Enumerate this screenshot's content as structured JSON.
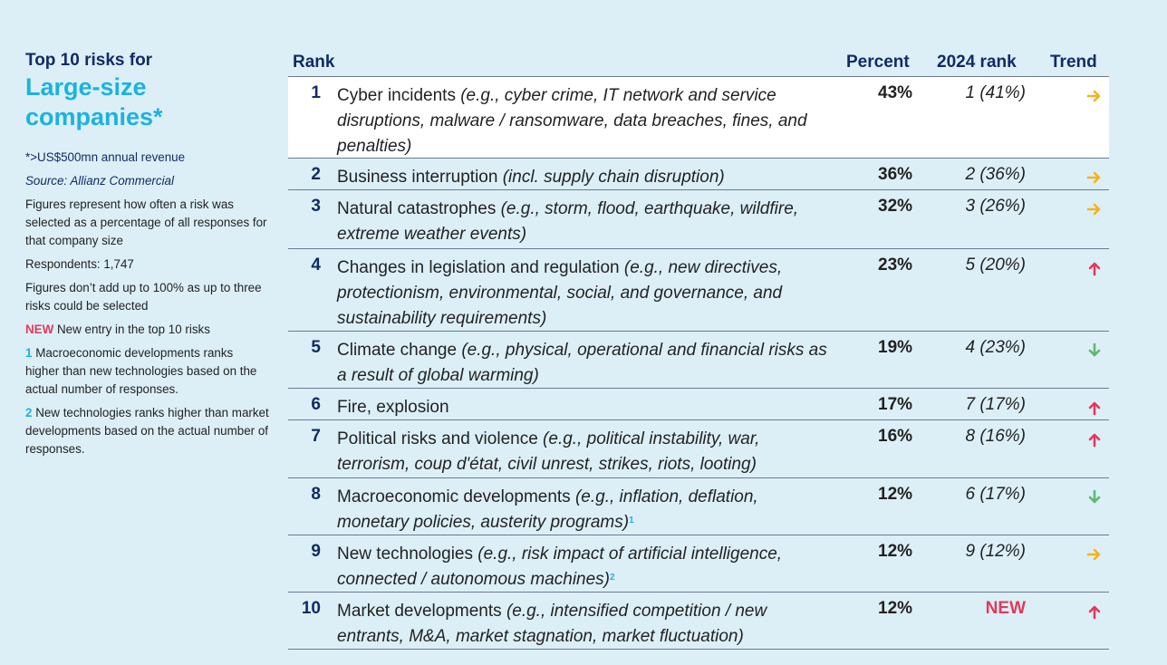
{
  "sidebar": {
    "title_line1": "Top 10 risks for",
    "title_line2": "Large-size",
    "title_line3": "companies*",
    "footnote_revenue": "*>US$500mn annual revenue",
    "source": "Source: Allianz Commercial",
    "figures_note": "Figures represent how often a risk was selected as a percentage of all responses for that company size",
    "respondents": "Respondents: 1,747",
    "sum_note": "Figures don’t add up to 100% as up to three risks could be selected",
    "new_tag": "NEW",
    "new_note": "New entry in the top 10 risks",
    "fn1_num": "1",
    "fn1_text": "Macroeconomic developments ranks higher than new technologies based on the actual number of responses.",
    "fn2_num": "2",
    "fn2_text": "New technologies ranks higher than market developments based on the actual number of responses."
  },
  "table": {
    "headers": {
      "rank": "Rank",
      "percent": "Percent",
      "rank2024": "2024 rank",
      "trend": "Trend"
    },
    "rows": [
      {
        "rank": "1",
        "name": "Cyber incidents",
        "example": "(e.g., cyber crime, IT network and service disruptions, malware / ransomware, data breaches, fines, and penalties)",
        "sup": "",
        "percent": "43%",
        "rank2024": "1 (41%)",
        "trend": "same"
      },
      {
        "rank": "2",
        "name": "Business interruption",
        "example": "(incl. supply chain disruption)",
        "sup": "",
        "percent": "36%",
        "rank2024": "2 (36%)",
        "trend": "same"
      },
      {
        "rank": "3",
        "name": "Natural catastrophes",
        "example": "(e.g., storm, flood, earthquake, wildfire, extreme weather events)",
        "sup": "",
        "percent": "32%",
        "rank2024": "3 (26%)",
        "trend": "same"
      },
      {
        "rank": "4",
        "name": "Changes in legislation and regulation",
        "example": "(e.g., new directives, protectionism, environmental, social, and governance, and sustainability requirements)",
        "sup": "",
        "percent": "23%",
        "rank2024": "5 (20%)",
        "trend": "up"
      },
      {
        "rank": "5",
        "name": "Climate change",
        "example": "(e.g., physical, operational and financial risks as a result of global warming)",
        "sup": "",
        "percent": "19%",
        "rank2024": "4 (23%)",
        "trend": "down"
      },
      {
        "rank": "6",
        "name": "Fire, explosion",
        "example": "",
        "sup": "",
        "percent": "17%",
        "rank2024": "7 (17%)",
        "trend": "up"
      },
      {
        "rank": "7",
        "name": "Political risks and violence",
        "example": "(e.g., political instability, war, terrorism, coup d'état, civil unrest, strikes, riots, looting)",
        "sup": "",
        "percent": "16%",
        "rank2024": "8 (16%)",
        "trend": "up"
      },
      {
        "rank": "8",
        "name": "Macroeconomic developments",
        "example": "(e.g., inflation, deflation, monetary policies, austerity programs)",
        "sup": "1",
        "percent": "12%",
        "rank2024": "6 (17%)",
        "trend": "down"
      },
      {
        "rank": "9",
        "name": "New technologies",
        "example": "(e.g., risk impact of artificial intelligence, connected / autonomous machines)",
        "sup": "2",
        "percent": "12%",
        "rank2024": "9 (12%)",
        "trend": "same"
      },
      {
        "rank": "10",
        "name": "Market developments",
        "example": "(e.g., intensified competition / new entrants, M&A, market stagnation, market fluctuation)",
        "sup": "",
        "percent": "12%",
        "rank2024": "NEW",
        "trend": "up"
      }
    ]
  },
  "colors": {
    "same": "#f5b31b",
    "up": "#e0395d",
    "down": "#5cb96f",
    "navy": "#122b66",
    "cyan": "#1cb2e0"
  }
}
